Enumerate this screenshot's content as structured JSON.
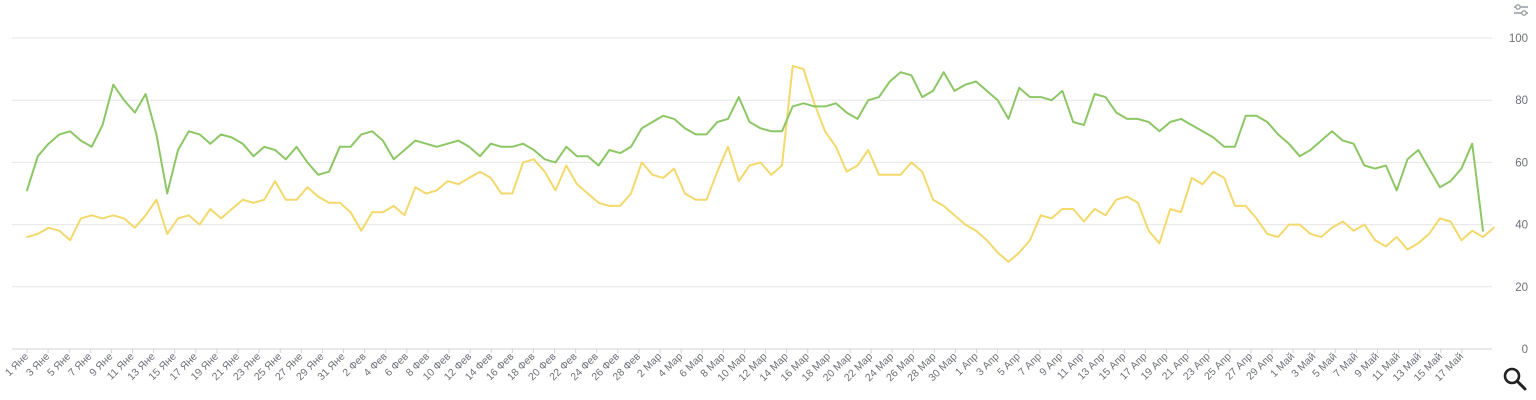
{
  "colors": {
    "series_green": "#8cc665",
    "series_yellow": "#f3d96c",
    "grid": "#e6e6e6",
    "axis": "#6e7079"
  },
  "icons": {
    "settings": "sliders-icon",
    "zoom": "magnifier-icon"
  },
  "chart_data": {
    "type": "line",
    "title": "",
    "xlabel": "",
    "ylabel": "",
    "ylim": [
      0,
      100
    ],
    "y_ticks": [
      0,
      20,
      40,
      60,
      80,
      100
    ],
    "y_axis_side": "right",
    "grid": true,
    "x_tick_labels": [
      "1 Яне",
      "3 Яне",
      "5 Яне",
      "7 Яне",
      "9 Яне",
      "11 Яне",
      "13 Яне",
      "15 Яне",
      "17 Яне",
      "19 Яне",
      "21 Яне",
      "23 Яне",
      "25 Яне",
      "27 Яне",
      "29 Яне",
      "31 Яне",
      "2 Фев",
      "4 Фев",
      "6 Фев",
      "8 Фев",
      "10 Фев",
      "12 Фев",
      "14 Фев",
      "16 Фев",
      "18 Фев",
      "20 Фев",
      "22 Фев",
      "24 Фев",
      "26 Фев",
      "28 Фев",
      "2 Мар",
      "4 Мар",
      "6 Мар",
      "8 Мар",
      "10 Мар",
      "12 Мар",
      "14 Мар",
      "16 Мар",
      "18 Мар",
      "20 Мар",
      "22 Мар",
      "24 Мар",
      "26 Мар",
      "28 Мар",
      "30 Мар",
      "1 Апр",
      "3 Апр",
      "5 Апр",
      "7 Апр",
      "9 Апр",
      "11 Апр",
      "13 Апр",
      "15 Апр",
      "17 Апр",
      "19 Апр",
      "21 Апр",
      "23 Апр",
      "25 Апр",
      "27 Апр",
      "29 Апр",
      "1 Май",
      "3 Май",
      "5 Май",
      "7 Май",
      "9 Май",
      "11 Май",
      "13 Май",
      "15 Май",
      "17 Май"
    ],
    "series": [
      {
        "color": "#8cc665",
        "values": [
          51,
          62,
          66,
          69,
          70,
          67,
          65,
          72,
          85,
          80,
          76,
          82,
          69,
          50,
          64,
          70,
          69,
          66,
          69,
          68,
          66,
          62,
          65,
          64,
          61,
          65,
          60,
          56,
          57,
          65,
          65,
          69,
          70,
          67,
          61,
          64,
          67,
          66,
          65,
          66,
          67,
          65,
          62,
          66,
          65,
          65,
          66,
          64,
          61,
          60,
          65,
          62,
          62,
          59,
          64,
          63,
          65,
          71,
          73,
          75,
          74,
          71,
          69,
          69,
          73,
          74,
          81,
          73,
          71,
          70,
          70,
          78,
          79,
          78,
          78,
          79,
          76,
          74,
          80,
          81,
          86,
          89,
          88,
          81,
          83,
          89,
          83,
          85,
          86,
          83,
          80,
          74,
          84,
          81,
          81,
          80,
          83,
          73,
          72,
          82,
          81,
          76,
          74,
          74,
          73,
          70,
          73,
          74,
          72,
          70,
          68,
          65,
          65,
          75,
          75,
          73,
          69,
          66,
          62,
          64,
          67,
          70,
          67,
          66,
          59,
          58,
          59,
          51,
          61,
          64,
          58,
          52,
          54,
          58,
          66,
          38
        ]
      },
      {
        "color": "#f3d96c",
        "values": [
          36,
          37,
          39,
          38,
          35,
          42,
          43,
          42,
          43,
          42,
          39,
          43,
          48,
          37,
          42,
          43,
          40,
          45,
          42,
          45,
          48,
          47,
          48,
          54,
          48,
          48,
          52,
          49,
          47,
          47,
          44,
          38,
          44,
          44,
          46,
          43,
          52,
          50,
          51,
          54,
          53,
          55,
          57,
          55,
          50,
          50,
          60,
          61,
          57,
          51,
          59,
          53,
          50,
          47,
          46,
          46,
          50,
          60,
          56,
          55,
          58,
          50,
          48,
          48,
          57,
          65,
          54,
          59,
          60,
          56,
          59,
          91,
          90,
          79,
          70,
          65,
          57,
          59,
          64,
          56,
          56,
          56,
          60,
          57,
          48,
          46,
          43,
          40,
          38,
          35,
          31,
          28,
          31,
          35,
          43,
          42,
          45,
          45,
          41,
          45,
          43,
          48,
          49,
          47,
          38,
          34,
          45,
          44,
          55,
          53,
          57,
          55,
          46,
          46,
          42,
          37,
          36,
          40,
          40,
          37,
          36,
          39,
          41,
          38,
          40,
          35,
          33,
          36,
          32,
          34,
          37,
          42,
          41,
          35,
          38,
          36,
          39
        ]
      }
    ]
  }
}
